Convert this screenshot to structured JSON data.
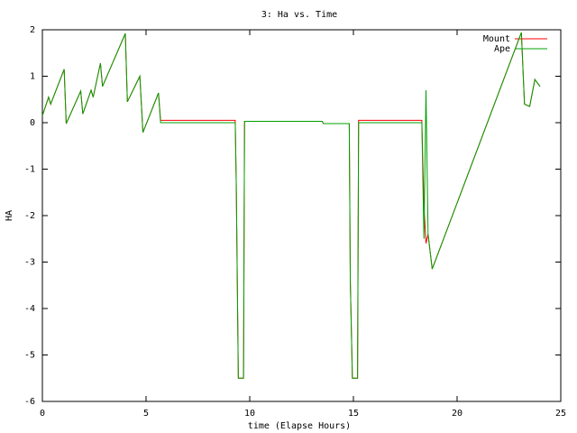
{
  "chart_data": {
    "type": "line",
    "title": "3: Ha vs. Time",
    "x_label": "time (Elapse Hours)",
    "y_label": "HA",
    "x": [
      0,
      0.3,
      0.4,
      1.05,
      1.15,
      1.85,
      1.95,
      2.35,
      2.45,
      2.8,
      2.9,
      4.0,
      4.1,
      4.7,
      4.85,
      5.6,
      5.7,
      9.3,
      9.35,
      9.45,
      9.7,
      9.75,
      13.5,
      13.55,
      14.8,
      14.85,
      14.95,
      15.2,
      15.25,
      18.3,
      18.4,
      18.5,
      18.6,
      18.8,
      23.1,
      23.25,
      23.5,
      23.75,
      24.0
    ],
    "series": [
      {
        "name": "Mount",
        "color": "#ff0000",
        "values": [
          0.15,
          0.55,
          0.4,
          1.15,
          -0.02,
          0.68,
          0.19,
          0.7,
          0.55,
          1.28,
          0.78,
          1.92,
          0.45,
          1.0,
          -0.21,
          0.64,
          0.05,
          0.05,
          -1.3,
          -5.5,
          -5.5,
          0.03,
          0.03,
          -0.02,
          -0.02,
          -3.4,
          -5.5,
          -5.5,
          0.05,
          0.05,
          -1.8,
          -2.6,
          -2.4,
          -3.15,
          1.94,
          0.4,
          0.35,
          0.93,
          0.78
        ]
      },
      {
        "name": "Ape",
        "color": "#00a000",
        "values": [
          0.15,
          0.55,
          0.4,
          1.15,
          -0.02,
          0.68,
          0.19,
          0.7,
          0.55,
          1.28,
          0.78,
          1.92,
          0.45,
          1.0,
          -0.21,
          0.64,
          0.0,
          0.0,
          -1.3,
          -5.5,
          -5.5,
          0.03,
          0.03,
          -0.02,
          -0.02,
          -3.4,
          -5.5,
          -5.5,
          0.0,
          0.0,
          -2.5,
          0.7,
          -2.4,
          -3.15,
          1.94,
          0.4,
          0.35,
          0.93,
          0.78
        ]
      }
    ],
    "xlim": [
      0,
      25
    ],
    "xticks": [
      0,
      5,
      10,
      15,
      20,
      25
    ],
    "ylim": [
      -6,
      2
    ],
    "yticks": [
      -6,
      -5,
      -4,
      -3,
      -2,
      -1,
      0,
      1,
      2
    ],
    "legend": "top-right"
  }
}
